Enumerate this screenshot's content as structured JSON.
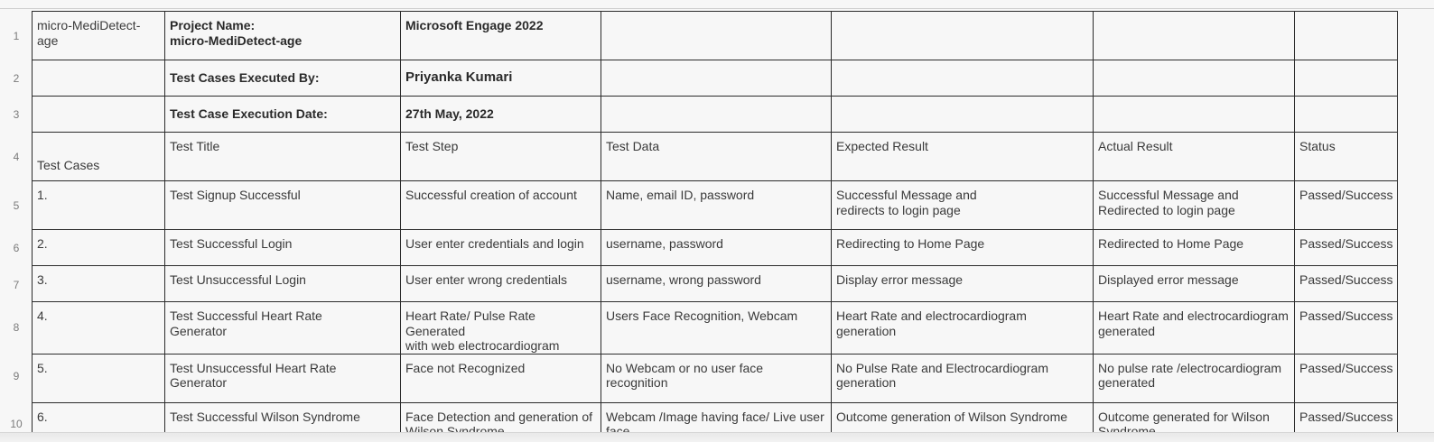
{
  "row_numbers": [
    "1",
    "2",
    "3",
    "4",
    "5",
    "6",
    "7",
    "8",
    "9",
    "10"
  ],
  "header_rows": [
    [
      "micro-MediDetect-age",
      "Project Name:\nmicro-MediDetect-age",
      "Microsoft Engage 2022",
      "",
      "",
      "",
      ""
    ],
    [
      "",
      "Test Cases Executed By:",
      "Priyanka Kumari",
      "",
      "",
      "",
      ""
    ],
    [
      "",
      "Test Case Execution Date:",
      "27th May, 2022",
      "",
      "",
      "",
      ""
    ]
  ],
  "columns": [
    "Test Cases",
    "Test Title",
    "Test Step",
    "Test Data",
    "Expected Result",
    "Actual Result",
    "Status"
  ],
  "test_rows": [
    [
      "1.",
      "Test Signup Successful",
      "Successful creation of account",
      "Name, email ID, password",
      "Successful Message and\nredirects to login page",
      "Successful Message and\nRedirected to login page",
      "Passed/Success"
    ],
    [
      "2.",
      "Test Successful Login",
      "User enter credentials and login",
      "username, password",
      "Redirecting to Home Page",
      "Redirected to Home Page",
      "Passed/Success"
    ],
    [
      "3.",
      "Test Unsuccessful Login",
      "User enter wrong credentials",
      "username, wrong password",
      "Display error message",
      "Displayed error message",
      "Passed/Success"
    ],
    [
      "4.",
      "Test Successful Heart Rate\nGenerator",
      "Heart Rate/ Pulse Rate Generated\nwith web electrocardiogram",
      "Users Face Recognition, Webcam",
      "Heart Rate and electrocardiogram\ngeneration",
      "Heart Rate and electrocardiogram\ngenerated",
      "Passed/Success"
    ],
    [
      "5.",
      "Test Unsuccessful Heart Rate\nGenerator",
      "Face not Recognized",
      "No Webcam or no user face recognition",
      "No Pulse Rate and Electrocardiogram\ngeneration",
      "No pulse rate /electrocardiogram\ngenerated",
      "Passed/Success"
    ],
    [
      "6.",
      "Test Successful Wilson Syndrome",
      "Face Detection and generation of\nWilson Syndrome",
      "Webcam /Image having face/ Live user\nface",
      "Outcome generation of Wilson Syndrome",
      "Outcome generated for Wilson\nSyndrome",
      "Passed/Success"
    ]
  ]
}
